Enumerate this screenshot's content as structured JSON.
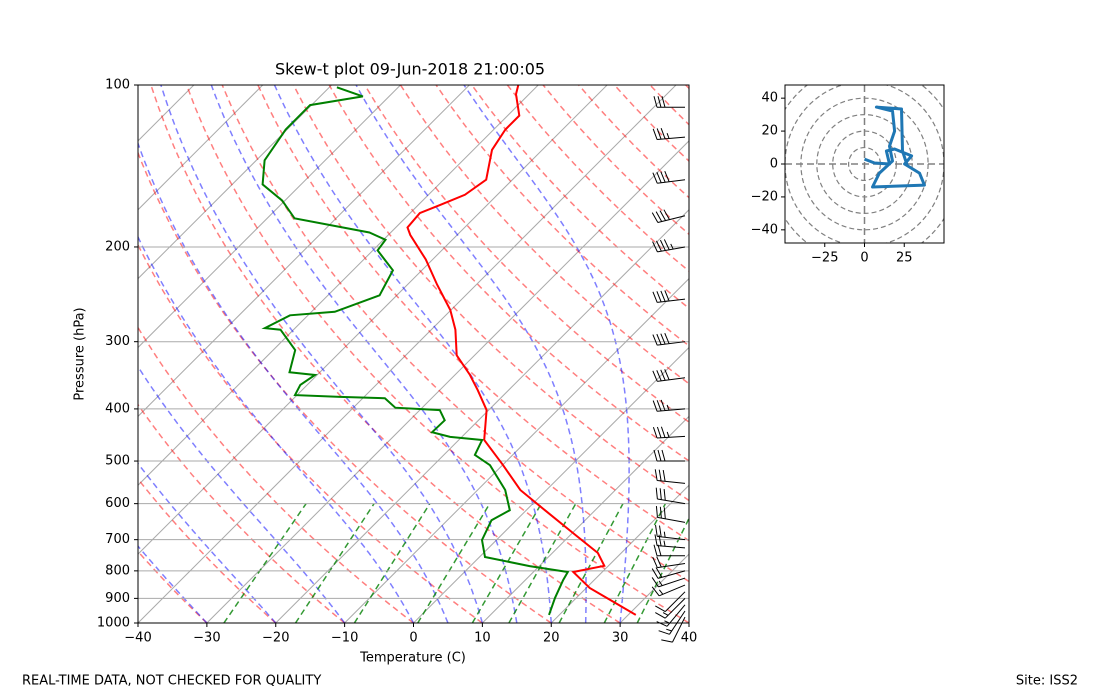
{
  "chart_data": [
    {
      "type": "skewt",
      "title": "Skew-t plot 09-Jun-2018 21:00:05",
      "x_label": "Temperature (C)",
      "y_label": "Pressure (hPa)",
      "xlim": [
        -40,
        40
      ],
      "ylim": [
        1000,
        100
      ],
      "log_y": true,
      "grid": true,
      "xticks": [
        {
          "value": -40,
          "label": "−40"
        },
        {
          "value": -30,
          "label": "−30"
        },
        {
          "value": -20,
          "label": "−20"
        },
        {
          "value": -10,
          "label": "−10"
        },
        0,
        10,
        20,
        30,
        40
      ],
      "yticks": [
        100,
        200,
        300,
        400,
        500,
        600,
        700,
        800,
        900,
        1000
      ],
      "profiles": [
        {
          "color": "#ff0000",
          "pressure": [
            966,
            906,
            861,
            804,
            783,
            741,
            686,
            617,
            566,
            509,
            457,
            402,
            369,
            346,
            318,
            285,
            262,
            235,
            211,
            190,
            184,
            173,
            167,
            160,
            150,
            132,
            121,
            114,
            104,
            100
          ],
          "values": [
            31.1,
            25.2,
            20.5,
            15.8,
            19.4,
            16.6,
            10.7,
            2.7,
            -3.8,
            -9.9,
            -16.3,
            -20.3,
            -24.5,
            -27.8,
            -32.6,
            -36.5,
            -40.1,
            -45.7,
            -51.0,
            -56.8,
            -58.3,
            -58.6,
            -56.8,
            -54.7,
            -53.8,
            -57.3,
            -58.3,
            -58.3,
            -61.9,
            -62.9
          ]
        },
        {
          "color": "#008000",
          "pressure": [
            966,
            898,
            832,
            804,
            784,
            754,
            701,
            644,
            617,
            566,
            509,
            487,
            457,
            451,
            442,
            420,
            402,
            398,
            382,
            380,
            377,
            361,
            346,
            342,
            311,
            285,
            283,
            268,
            264,
            246,
            221,
            203,
            194,
            188,
            177,
            164,
            153,
            138,
            121,
            109,
            105,
            101
          ],
          "values": [
            18.5,
            16.9,
            15.5,
            15.0,
            8.6,
            0.8,
            -2.1,
            -3.6,
            -2.4,
            -6.0,
            -11.8,
            -15.5,
            -16.6,
            -21.7,
            -25.0,
            -24.9,
            -27.1,
            -33.9,
            -36.8,
            -43.5,
            -50.3,
            -51.0,
            -50.3,
            -54.4,
            -56.8,
            -61.9,
            -64.4,
            -62.6,
            -56.6,
            -52.5,
            -54.2,
            -59.3,
            -59.7,
            -63.1,
            -76.0,
            -80.4,
            -85.6,
            -88.8,
            -90.2,
            -90.2,
            -83.8,
            -88.9
          ]
        }
      ],
      "barbs": {
        "color": "#000000",
        "pressure": [
          975,
          950,
          925,
          900,
          875,
          850,
          825,
          800,
          775,
          750,
          725,
          700,
          650,
          600,
          550,
          500,
          450,
          400,
          350,
          300,
          250,
          200,
          175,
          150,
          125,
          110
        ],
        "u": [
          5,
          8,
          10,
          10,
          8,
          12,
          15,
          18,
          20,
          22,
          25,
          25,
          28,
          30,
          30,
          32,
          35,
          35,
          38,
          40,
          42,
          45,
          40,
          40,
          35,
          30
        ],
        "v": [
          10,
          12,
          12,
          10,
          8,
          5,
          5,
          5,
          3,
          0,
          -2,
          -3,
          -5,
          -5,
          -3,
          0,
          2,
          3,
          5,
          5,
          5,
          8,
          10,
          5,
          3,
          0
        ]
      }
    },
    {
      "type": "hodograph",
      "color": "#1f77b4",
      "xlim": [
        -50,
        50
      ],
      "ylim": [
        -48,
        48
      ],
      "xticks": [
        {
          "value": -25,
          "label": "−25"
        },
        0,
        25
      ],
      "yticks": [
        {
          "value": -40,
          "label": "−40"
        },
        {
          "value": -20,
          "label": "−20"
        },
        0,
        20,
        40
      ],
      "u": [
        0,
        6.3,
        15.7,
        13.8,
        18.9,
        29.6,
        25.2,
        34.6,
        37.7,
        5.0,
        9.4,
        17.6,
        15.7,
        18.9,
        17.6,
        7.5,
        23.3,
        23.9,
        27.0
      ],
      "v": [
        3.0,
        0.6,
        0,
        7.9,
        9.1,
        4.9,
        0,
        -5.5,
        -12.8,
        -14.0,
        -5.5,
        1.8,
        10.9,
        20.0,
        32.2,
        34.6,
        33.4,
        7.9,
        -1.2
      ]
    }
  ],
  "footer": {
    "left": "REAL-TIME DATA, NOT CHECKED FOR QUALITY",
    "right": "Site: ISS2"
  }
}
